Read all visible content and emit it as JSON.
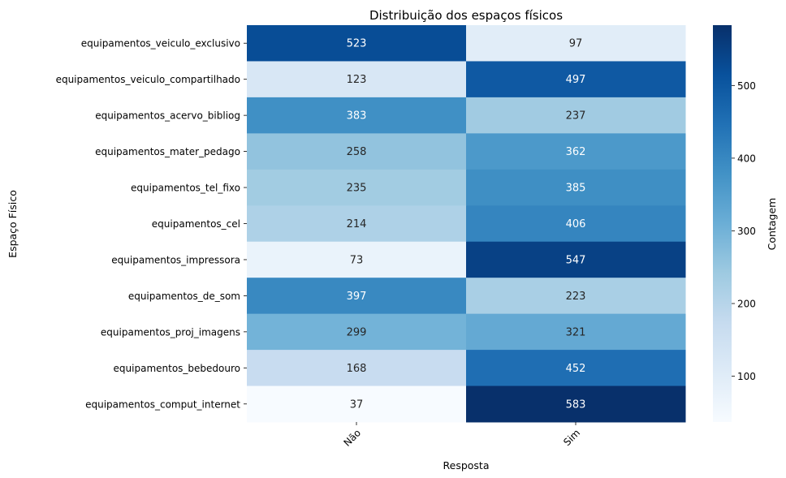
{
  "chart_data": {
    "type": "heatmap",
    "title": "Distribuição dos espaços físicos",
    "xlabel": "Resposta",
    "ylabel": "Espaço Físico",
    "columns": [
      "Não",
      "Sim"
    ],
    "rows": [
      "equipamentos_veiculo_exclusivo",
      "equipamentos_veiculo_compartilhado",
      "equipamentos_acervo_bibliog",
      "equipamentos_mater_pedago",
      "equipamentos_tel_fixo",
      "equipamentos_cel",
      "equipamentos_impressora",
      "equipamentos_de_som",
      "equipamentos_proj_imagens",
      "equipamentos_bebedouro",
      "equipamentos_comput_internet"
    ],
    "values": [
      [
        523,
        97
      ],
      [
        123,
        497
      ],
      [
        383,
        237
      ],
      [
        258,
        362
      ],
      [
        235,
        385
      ],
      [
        214,
        406
      ],
      [
        73,
        547
      ],
      [
        397,
        223
      ],
      [
        299,
        321
      ],
      [
        168,
        452
      ],
      [
        37,
        583
      ]
    ],
    "colorbar": {
      "label": "Contagem",
      "range": [
        37,
        583
      ],
      "ticks": [
        100,
        200,
        300,
        400,
        500
      ],
      "colormap": "Blues"
    }
  }
}
